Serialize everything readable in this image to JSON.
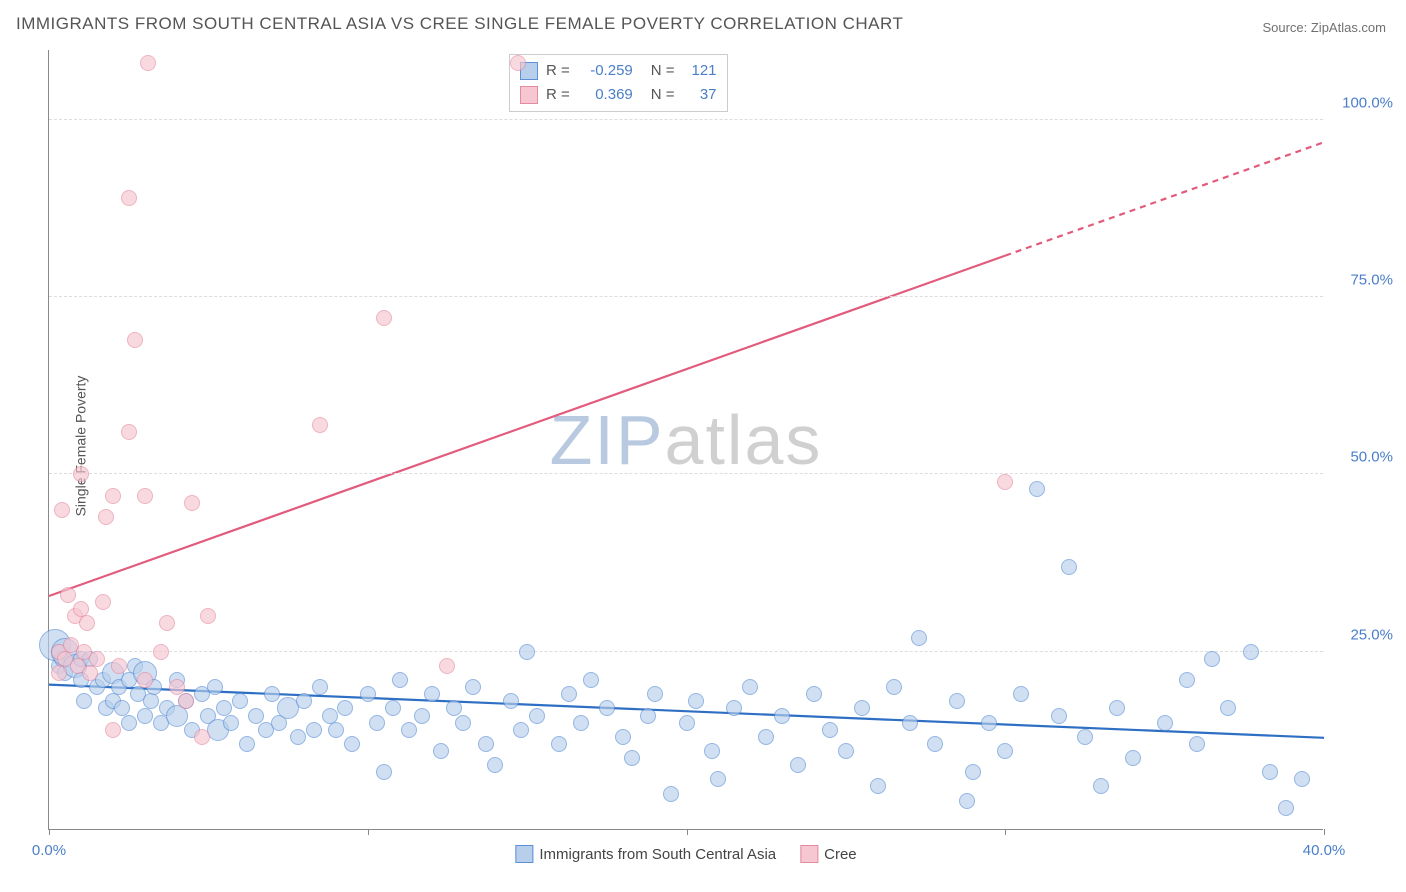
{
  "title": "IMMIGRANTS FROM SOUTH CENTRAL ASIA VS CREE SINGLE FEMALE POVERTY CORRELATION CHART",
  "source_label": "Source: ",
  "source_value": "ZipAtlas.com",
  "ylabel": "Single Female Poverty",
  "watermark": {
    "text_a": "ZIP",
    "text_b": "atlas",
    "color_a": "#b8c9e0",
    "color_b": "#d0d0d0"
  },
  "chart": {
    "type": "scatter",
    "xlim": [
      0,
      40
    ],
    "ylim": [
      0,
      110
    ],
    "x_ticks": [
      0,
      10,
      20,
      30,
      40
    ],
    "x_tick_labels": [
      "0.0%",
      "",
      "",
      "",
      "40.0%"
    ],
    "y_ticks": [
      25,
      50,
      75,
      100
    ],
    "y_tick_labels": [
      "25.0%",
      "50.0%",
      "75.0%",
      "100.0%"
    ],
    "axis_tick_color": "#4a7ec9",
    "grid_color": "#dddddd",
    "background_color": "#ffffff",
    "legend_top": {
      "rows": [
        {
          "swatch_fill": "#b7cfeb",
          "swatch_border": "#5b8fd6",
          "r_label": "R =",
          "r_value": "-0.259",
          "n_label": "N =",
          "n_value": "121"
        },
        {
          "swatch_fill": "#f6c6d1",
          "swatch_border": "#e48ba1",
          "r_label": "R =",
          "r_value": "0.369",
          "n_label": "N =",
          "n_value": "37"
        }
      ],
      "label_color": "#555555",
      "value_color": "#4a7ec9"
    },
    "legend_bottom": [
      {
        "swatch_fill": "#b7cfeb",
        "swatch_border": "#5b8fd6",
        "label": "Immigrants from South Central Asia"
      },
      {
        "swatch_fill": "#f6c6d1",
        "swatch_border": "#e48ba1",
        "label": "Cree"
      }
    ],
    "series": [
      {
        "name": "Immigrants from South Central Asia",
        "fill": "#b7cfeb",
        "border": "#5b8fd6",
        "fill_opacity": 0.65,
        "marker_r": 8,
        "trend": {
          "x1": 0,
          "y1": 20.5,
          "x2": 40,
          "y2": 13.0,
          "color": "#2e6fc4",
          "width": 2.2,
          "dashed_from_x": 40
        },
        "points": [
          {
            "x": 0.2,
            "y": 26,
            "r": 16
          },
          {
            "x": 0.3,
            "y": 25
          },
          {
            "x": 0.3,
            "y": 23
          },
          {
            "x": 0.4,
            "y": 24
          },
          {
            "x": 0.5,
            "y": 25,
            "r": 14
          },
          {
            "x": 0.5,
            "y": 22
          },
          {
            "x": 0.8,
            "y": 23,
            "r": 12
          },
          {
            "x": 1.0,
            "y": 24
          },
          {
            "x": 1.0,
            "y": 21
          },
          {
            "x": 1.1,
            "y": 18
          },
          {
            "x": 1.3,
            "y": 24
          },
          {
            "x": 1.5,
            "y": 20
          },
          {
            "x": 1.7,
            "y": 21
          },
          {
            "x": 1.8,
            "y": 17
          },
          {
            "x": 2.0,
            "y": 22,
            "r": 11
          },
          {
            "x": 2.0,
            "y": 18
          },
          {
            "x": 2.2,
            "y": 20
          },
          {
            "x": 2.3,
            "y": 17
          },
          {
            "x": 2.5,
            "y": 21
          },
          {
            "x": 2.5,
            "y": 15
          },
          {
            "x": 2.7,
            "y": 23
          },
          {
            "x": 2.8,
            "y": 19
          },
          {
            "x": 3.0,
            "y": 22,
            "r": 12
          },
          {
            "x": 3.0,
            "y": 16
          },
          {
            "x": 3.2,
            "y": 18
          },
          {
            "x": 3.3,
            "y": 20
          },
          {
            "x": 3.5,
            "y": 15
          },
          {
            "x": 3.7,
            "y": 17
          },
          {
            "x": 4.0,
            "y": 21
          },
          {
            "x": 4.0,
            "y": 16,
            "r": 11
          },
          {
            "x": 4.3,
            "y": 18
          },
          {
            "x": 4.5,
            "y": 14
          },
          {
            "x": 4.8,
            "y": 19
          },
          {
            "x": 5.0,
            "y": 16
          },
          {
            "x": 5.2,
            "y": 20
          },
          {
            "x": 5.3,
            "y": 14,
            "r": 11
          },
          {
            "x": 5.5,
            "y": 17
          },
          {
            "x": 5.7,
            "y": 15
          },
          {
            "x": 6.0,
            "y": 18
          },
          {
            "x": 6.2,
            "y": 12
          },
          {
            "x": 6.5,
            "y": 16
          },
          {
            "x": 6.8,
            "y": 14
          },
          {
            "x": 7.0,
            "y": 19
          },
          {
            "x": 7.2,
            "y": 15
          },
          {
            "x": 7.5,
            "y": 17,
            "r": 11
          },
          {
            "x": 7.8,
            "y": 13
          },
          {
            "x": 8.0,
            "y": 18
          },
          {
            "x": 8.3,
            "y": 14
          },
          {
            "x": 8.5,
            "y": 20
          },
          {
            "x": 8.8,
            "y": 16
          },
          {
            "x": 9.0,
            "y": 14
          },
          {
            "x": 9.3,
            "y": 17
          },
          {
            "x": 9.5,
            "y": 12
          },
          {
            "x": 10.0,
            "y": 19
          },
          {
            "x": 10.3,
            "y": 15
          },
          {
            "x": 10.5,
            "y": 8
          },
          {
            "x": 10.8,
            "y": 17
          },
          {
            "x": 11.0,
            "y": 21
          },
          {
            "x": 11.3,
            "y": 14
          },
          {
            "x": 11.7,
            "y": 16
          },
          {
            "x": 12.0,
            "y": 19
          },
          {
            "x": 12.3,
            "y": 11
          },
          {
            "x": 12.7,
            "y": 17
          },
          {
            "x": 13.0,
            "y": 15
          },
          {
            "x": 13.3,
            "y": 20
          },
          {
            "x": 13.7,
            "y": 12
          },
          {
            "x": 14.0,
            "y": 9
          },
          {
            "x": 14.5,
            "y": 18
          },
          {
            "x": 14.8,
            "y": 14
          },
          {
            "x": 15.0,
            "y": 25
          },
          {
            "x": 15.3,
            "y": 16
          },
          {
            "x": 16.0,
            "y": 12
          },
          {
            "x": 16.3,
            "y": 19
          },
          {
            "x": 16.7,
            "y": 15
          },
          {
            "x": 17.0,
            "y": 21
          },
          {
            "x": 17.5,
            "y": 17
          },
          {
            "x": 18.0,
            "y": 13
          },
          {
            "x": 18.3,
            "y": 10
          },
          {
            "x": 18.8,
            "y": 16
          },
          {
            "x": 19.0,
            "y": 19
          },
          {
            "x": 19.5,
            "y": 5
          },
          {
            "x": 20.0,
            "y": 15
          },
          {
            "x": 20.3,
            "y": 18
          },
          {
            "x": 20.8,
            "y": 11
          },
          {
            "x": 21.0,
            "y": 7
          },
          {
            "x": 21.5,
            "y": 17
          },
          {
            "x": 22.0,
            "y": 20
          },
          {
            "x": 22.5,
            "y": 13
          },
          {
            "x": 23.0,
            "y": 16
          },
          {
            "x": 23.5,
            "y": 9
          },
          {
            "x": 24.0,
            "y": 19
          },
          {
            "x": 24.5,
            "y": 14
          },
          {
            "x": 25.0,
            "y": 11
          },
          {
            "x": 25.5,
            "y": 17
          },
          {
            "x": 26.0,
            "y": 6
          },
          {
            "x": 26.5,
            "y": 20
          },
          {
            "x": 27.0,
            "y": 15
          },
          {
            "x": 27.3,
            "y": 27
          },
          {
            "x": 27.8,
            "y": 12
          },
          {
            "x": 28.5,
            "y": 18
          },
          {
            "x": 28.8,
            "y": 4
          },
          {
            "x": 29.0,
            "y": 8
          },
          {
            "x": 29.5,
            "y": 15
          },
          {
            "x": 30.0,
            "y": 11
          },
          {
            "x": 30.5,
            "y": 19
          },
          {
            "x": 31.0,
            "y": 48
          },
          {
            "x": 31.7,
            "y": 16
          },
          {
            "x": 32.0,
            "y": 37
          },
          {
            "x": 32.5,
            "y": 13
          },
          {
            "x": 33.0,
            "y": 6
          },
          {
            "x": 33.5,
            "y": 17
          },
          {
            "x": 34.0,
            "y": 10
          },
          {
            "x": 35.0,
            "y": 15
          },
          {
            "x": 35.7,
            "y": 21
          },
          {
            "x": 36.0,
            "y": 12
          },
          {
            "x": 36.5,
            "y": 24
          },
          {
            "x": 37.0,
            "y": 17
          },
          {
            "x": 37.7,
            "y": 25
          },
          {
            "x": 38.3,
            "y": 8
          },
          {
            "x": 38.8,
            "y": 3
          },
          {
            "x": 39.3,
            "y": 7
          }
        ]
      },
      {
        "name": "Cree",
        "fill": "#f6c6d1",
        "border": "#e48ba1",
        "fill_opacity": 0.65,
        "marker_r": 8,
        "trend": {
          "x1": 0,
          "y1": 33,
          "x2": 40,
          "y2": 97,
          "color": "#e25b7c",
          "width": 2.2,
          "dashed_from_x": 30
        },
        "points": [
          {
            "x": 0.3,
            "y": 25
          },
          {
            "x": 0.3,
            "y": 22
          },
          {
            "x": 0.4,
            "y": 45
          },
          {
            "x": 0.5,
            "y": 24
          },
          {
            "x": 0.6,
            "y": 33
          },
          {
            "x": 0.7,
            "y": 26
          },
          {
            "x": 0.8,
            "y": 30
          },
          {
            "x": 0.9,
            "y": 23
          },
          {
            "x": 1.0,
            "y": 50
          },
          {
            "x": 1.0,
            "y": 31
          },
          {
            "x": 1.1,
            "y": 25
          },
          {
            "x": 1.2,
            "y": 29
          },
          {
            "x": 1.3,
            "y": 22
          },
          {
            "x": 1.5,
            "y": 24
          },
          {
            "x": 1.7,
            "y": 32
          },
          {
            "x": 1.8,
            "y": 44
          },
          {
            "x": 2.0,
            "y": 14
          },
          {
            "x": 2.0,
            "y": 47
          },
          {
            "x": 2.2,
            "y": 23
          },
          {
            "x": 2.5,
            "y": 56
          },
          {
            "x": 2.5,
            "y": 89
          },
          {
            "x": 2.7,
            "y": 69
          },
          {
            "x": 3.0,
            "y": 21
          },
          {
            "x": 3.0,
            "y": 47
          },
          {
            "x": 3.1,
            "y": 108
          },
          {
            "x": 3.5,
            "y": 25
          },
          {
            "x": 3.7,
            "y": 29
          },
          {
            "x": 4.0,
            "y": 20
          },
          {
            "x": 4.3,
            "y": 18
          },
          {
            "x": 4.5,
            "y": 46
          },
          {
            "x": 4.8,
            "y": 13
          },
          {
            "x": 5.0,
            "y": 30
          },
          {
            "x": 8.5,
            "y": 57
          },
          {
            "x": 10.5,
            "y": 72
          },
          {
            "x": 12.5,
            "y": 23
          },
          {
            "x": 14.7,
            "y": 108
          },
          {
            "x": 30.0,
            "y": 49
          }
        ]
      }
    ]
  }
}
